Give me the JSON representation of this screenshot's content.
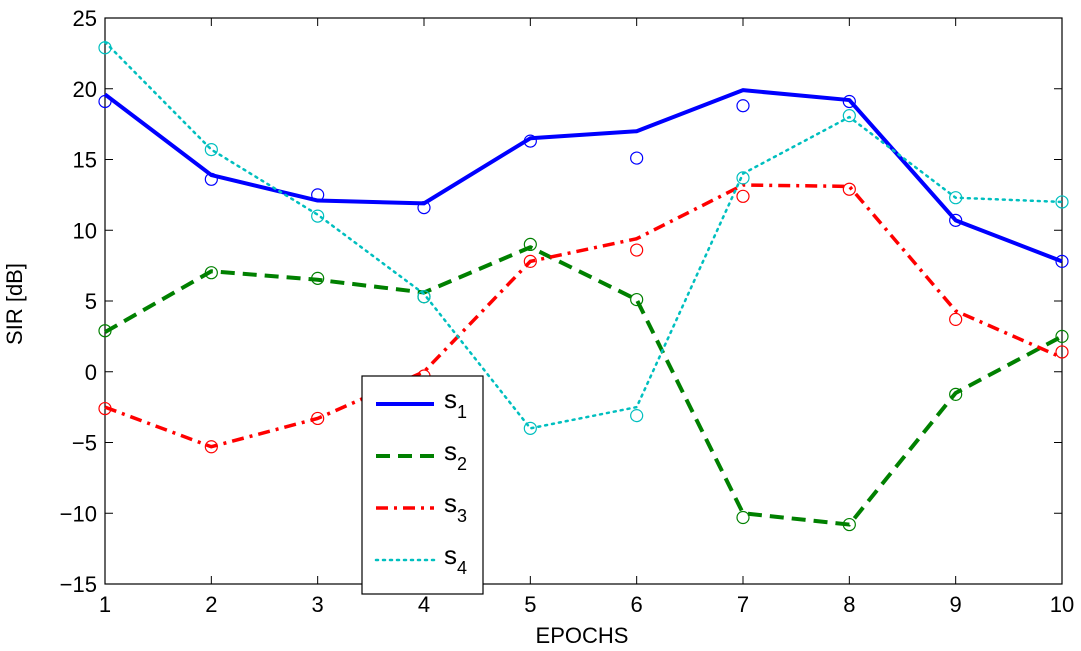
{
  "chart_data": {
    "type": "line",
    "xlabel": "EPOCHS",
    "ylabel": "SIR [dB]",
    "xlim": [
      1,
      10
    ],
    "ylim": [
      -15,
      25
    ],
    "x_ticks": [
      1,
      2,
      3,
      4,
      5,
      6,
      7,
      8,
      9,
      10
    ],
    "y_ticks": [
      -15,
      -10,
      -5,
      0,
      5,
      10,
      15,
      20,
      25
    ],
    "x_tick_labels": [
      "1",
      "2",
      "3",
      "4",
      "5",
      "6",
      "7",
      "8",
      "9",
      "10"
    ],
    "y_tick_labels": [
      "−15",
      "−10",
      "−5",
      "0",
      "5",
      "10",
      "15",
      "20",
      "25"
    ],
    "grid": false,
    "legend_position": "lower-left",
    "x": [
      1,
      2,
      3,
      4,
      5,
      6,
      7,
      8,
      9,
      10
    ],
    "series": [
      {
        "name": "s",
        "subscript": "1",
        "color": "#0000ff",
        "line_style": "solid",
        "line_values": [
          19.6,
          13.9,
          12.1,
          11.9,
          16.5,
          17.0,
          19.9,
          19.2,
          10.7,
          7.8
        ],
        "marker_values": [
          19.1,
          13.6,
          12.5,
          11.6,
          16.3,
          15.1,
          18.8,
          19.1,
          10.7,
          7.8
        ]
      },
      {
        "name": "s",
        "subscript": "2",
        "color": "#008000",
        "line_style": "dashed",
        "line_values": [
          2.8,
          7.1,
          6.5,
          5.6,
          8.8,
          5.1,
          -10.0,
          -10.8,
          -1.5,
          2.5
        ],
        "marker_values": [
          2.9,
          7.0,
          6.6,
          5.3,
          9.0,
          5.1,
          -10.3,
          -10.8,
          -1.6,
          2.5
        ]
      },
      {
        "name": "s",
        "subscript": "3",
        "color": "#ff0000",
        "line_style": "dashdot",
        "line_values": [
          -2.5,
          -5.3,
          -3.3,
          0.0,
          7.8,
          9.4,
          13.2,
          13.1,
          4.3,
          1.0
        ],
        "marker_values": [
          -2.6,
          -5.3,
          -3.3,
          -0.3,
          7.8,
          8.6,
          12.4,
          12.9,
          3.7,
          1.4
        ]
      },
      {
        "name": "s",
        "subscript": "4",
        "color": "#00bfbf",
        "line_style": "dotted",
        "line_values": [
          23.3,
          15.7,
          11.1,
          5.5,
          -4.0,
          -2.5,
          14.0,
          18.0,
          12.3,
          12.0
        ],
        "marker_values": [
          22.9,
          15.7,
          11.0,
          5.3,
          -4.0,
          -3.1,
          13.7,
          18.1,
          12.3,
          12.0
        ]
      }
    ]
  }
}
